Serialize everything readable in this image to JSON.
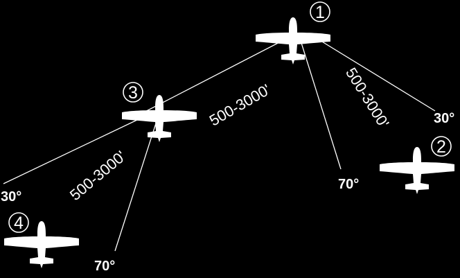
{
  "diagram": {
    "background_color": "#000000",
    "foreground_color": "#ffffff",
    "aircraft": [
      {
        "position": "1"
      },
      {
        "position": "2"
      },
      {
        "position": "3"
      },
      {
        "position": "4"
      }
    ],
    "labels": {
      "angle_30_right": "30°",
      "angle_70_right": "70°",
      "angle_30_left": "30°",
      "angle_70_left": "70°",
      "range_right": "500-3000'",
      "range_middle": "500-3000'",
      "range_left": "500-3000'"
    }
  }
}
